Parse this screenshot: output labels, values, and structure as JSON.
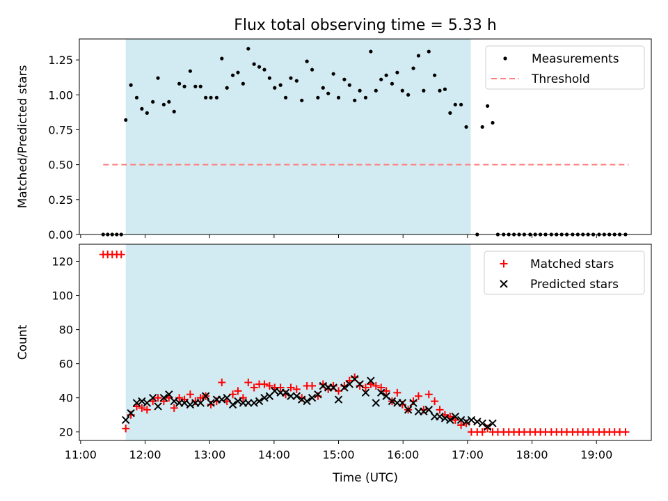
{
  "chart_data": {
    "title": "Flux total observing time = 5.33 h",
    "xlabel": "Time (UTC)",
    "x_ticks": [
      "11:00",
      "12:00",
      "13:00",
      "14:00",
      "15:00",
      "16:00",
      "17:00",
      "18:00",
      "19:00"
    ],
    "x_range_hours": [
      10.98,
      19.85
    ],
    "observing_window_hours": [
      11.7,
      17.05
    ],
    "colors": {
      "window": "#add8e6",
      "matched": "#ff0000",
      "predicted": "#000000",
      "threshold": "#ff7f7f",
      "measurement": "#000000"
    },
    "panels": [
      {
        "type": "scatter",
        "ylabel": "Matched/Predicted stars",
        "ylim": [
          0,
          1.4
        ],
        "y_ticks": [
          0.0,
          0.25,
          0.5,
          0.75,
          1.0,
          1.25
        ],
        "y_tick_labels": [
          "0.00",
          "0.25",
          "0.50",
          "0.75",
          "1.00",
          "1.25"
        ],
        "legend": {
          "position": "top-right",
          "entries": [
            "Measurements",
            "Threshold"
          ]
        },
        "threshold": {
          "name": "Threshold",
          "value": 0.5,
          "x": [
            11.35,
            19.5
          ]
        },
        "series": [
          {
            "name": "Measurements",
            "marker": "dot",
            "x": [
              11.35,
              11.42,
              11.49,
              11.56,
              11.63,
              11.7,
              11.78,
              11.87,
              11.95,
              12.03,
              12.12,
              12.2,
              12.29,
              12.37,
              12.45,
              12.53,
              12.61,
              12.7,
              12.78,
              12.86,
              12.94,
              13.02,
              13.11,
              13.19,
              13.27,
              13.36,
              13.44,
              13.52,
              13.6,
              13.69,
              13.77,
              13.85,
              13.93,
              14.01,
              14.1,
              14.18,
              14.26,
              14.35,
              14.43,
              14.51,
              14.59,
              14.68,
              14.76,
              14.84,
              14.92,
              15.0,
              15.09,
              15.17,
              15.25,
              15.33,
              15.42,
              15.5,
              15.58,
              15.66,
              15.74,
              15.83,
              15.91,
              15.99,
              16.08,
              16.16,
              16.24,
              16.32,
              16.4,
              16.49,
              16.57,
              16.65,
              16.73,
              16.81,
              16.9,
              16.98,
              17.06,
              17.15,
              17.23,
              17.31,
              17.39,
              17.47,
              17.56,
              17.64,
              17.72,
              17.8,
              17.88,
              17.97,
              18.05,
              18.13,
              18.21,
              18.3,
              18.38,
              18.46,
              18.54,
              18.63,
              18.71,
              18.79,
              18.87,
              18.95,
              19.04,
              19.12,
              19.2,
              19.28,
              19.36,
              19.45
            ],
            "y": [
              0.0,
              0.0,
              0.0,
              0.0,
              0.0,
              0.82,
              1.07,
              0.98,
              0.9,
              0.87,
              0.95,
              1.12,
              0.93,
              0.95,
              0.88,
              1.08,
              1.06,
              1.17,
              1.06,
              1.06,
              0.98,
              0.98,
              0.98,
              1.26,
              1.05,
              1.14,
              1.16,
              1.08,
              1.33,
              1.22,
              1.2,
              1.18,
              1.12,
              1.05,
              1.07,
              0.98,
              1.12,
              1.1,
              0.96,
              1.24,
              1.18,
              0.98,
              1.05,
              1.01,
              1.15,
              0.98,
              1.11,
              1.07,
              0.96,
              1.03,
              0.98,
              1.31,
              1.03,
              1.11,
              1.14,
              1.08,
              1.16,
              1.03,
              1.0,
              1.19,
              1.28,
              1.03,
              1.31,
              1.14,
              1.03,
              1.04,
              0.87,
              0.93,
              0.93,
              0.77,
              null,
              0.0,
              0.77,
              0.92,
              0.8,
              0.0,
              0.0,
              0.0,
              0.0,
              0.0,
              0.0,
              0.0,
              0.0,
              0.0,
              0.0,
              0.0,
              0.0,
              0.0,
              0.0,
              0.0,
              0.0,
              0.0,
              0.0,
              0.0,
              0.0,
              0.0,
              0.0,
              0.0,
              0.0,
              0.0
            ]
          }
        ]
      },
      {
        "type": "scatter",
        "ylabel": "Count",
        "ylim": [
          15,
          130
        ],
        "y_ticks": [
          20,
          40,
          60,
          80,
          100,
          120
        ],
        "y_tick_labels": [
          "20",
          "40",
          "60",
          "80",
          "100",
          "120"
        ],
        "legend": {
          "position": "top-right",
          "entries": [
            "Matched stars",
            "Predicted stars"
          ]
        },
        "series": [
          {
            "name": "Matched stars",
            "marker": "plus",
            "x": [
              11.35,
              11.42,
              11.49,
              11.56,
              11.63,
              11.7,
              11.78,
              11.87,
              11.95,
              12.03,
              12.12,
              12.2,
              12.29,
              12.37,
              12.45,
              12.53,
              12.61,
              12.7,
              12.78,
              12.86,
              12.94,
              13.02,
              13.11,
              13.19,
              13.27,
              13.36,
              13.44,
              13.52,
              13.6,
              13.69,
              13.77,
              13.85,
              13.93,
              14.01,
              14.1,
              14.18,
              14.26,
              14.35,
              14.43,
              14.51,
              14.59,
              14.68,
              14.76,
              14.84,
              14.92,
              15.0,
              15.09,
              15.17,
              15.25,
              15.33,
              15.42,
              15.5,
              15.58,
              15.66,
              15.74,
              15.83,
              15.91,
              15.99,
              16.08,
              16.16,
              16.24,
              16.32,
              16.4,
              16.49,
              16.57,
              16.65,
              16.73,
              16.81,
              16.9,
              16.98,
              17.06,
              17.15,
              17.23,
              17.31,
              17.39,
              17.47,
              17.56,
              17.64,
              17.72,
              17.8,
              17.88,
              17.97,
              18.05,
              18.13,
              18.21,
              18.3,
              18.38,
              18.46,
              18.54,
              18.63,
              18.71,
              18.79,
              18.87,
              18.95,
              19.04,
              19.12,
              19.2,
              19.28,
              19.36,
              19.45
            ],
            "y": [
              124,
              124,
              124,
              124,
              124,
              22,
              30,
              35,
              34,
              33,
              38,
              40,
              38,
              40,
              34,
              40,
              39,
              42,
              38,
              40,
              41,
              36,
              38,
              49,
              38,
              42,
              44,
              40,
              49,
              46,
              48,
              48,
              47,
              46,
              46,
              42,
              46,
              45,
              40,
              47,
              47,
              41,
              48,
              45,
              47,
              44,
              47,
              50,
              52,
              47,
              46,
              48,
              47,
              46,
              44,
              38,
              43,
              36,
              33,
              38,
              41,
              33,
              42,
              38,
              33,
              30,
              29,
              27,
              24,
              25,
              20,
              20,
              20,
              22,
              20,
              20,
              20,
              20,
              20,
              20,
              20,
              20,
              20,
              20,
              20,
              20,
              20,
              20,
              20,
              20,
              20,
              20,
              20,
              20,
              20,
              20,
              20,
              20,
              20,
              20
            ]
          },
          {
            "name": "Predicted stars",
            "marker": "x",
            "x": [
              11.7,
              11.78,
              11.87,
              11.95,
              12.03,
              12.12,
              12.2,
              12.29,
              12.37,
              12.45,
              12.53,
              12.61,
              12.7,
              12.78,
              12.86,
              12.94,
              13.02,
              13.11,
              13.19,
              13.27,
              13.36,
              13.44,
              13.52,
              13.6,
              13.69,
              13.77,
              13.85,
              13.93,
              14.01,
              14.1,
              14.18,
              14.26,
              14.35,
              14.43,
              14.51,
              14.59,
              14.68,
              14.76,
              14.84,
              14.92,
              15.0,
              15.09,
              15.17,
              15.25,
              15.33,
              15.42,
              15.5,
              15.58,
              15.66,
              15.74,
              15.83,
              15.91,
              15.99,
              16.08,
              16.16,
              16.24,
              16.32,
              16.4,
              16.49,
              16.57,
              16.65,
              16.73,
              16.81,
              16.9,
              16.98,
              17.06,
              17.15,
              17.23,
              17.31,
              17.39
            ],
            "y": [
              27,
              31,
              37,
              38,
              37,
              40,
              35,
              40,
              42,
              38,
              37,
              37,
              36,
              37,
              37,
              41,
              37,
              39,
              39,
              40,
              36,
              38,
              37,
              37,
              37,
              38,
              40,
              41,
              44,
              43,
              43,
              41,
              41,
              39,
              38,
              40,
              42,
              47,
              46,
              46,
              39,
              46,
              48,
              51,
              48,
              43,
              50,
              37,
              43,
              41,
              38,
              37,
              37,
              33,
              37,
              32,
              32,
              33,
              29,
              29,
              28,
              27,
              29,
              27,
              26,
              27,
              26,
              25,
              23,
              25
            ]
          }
        ]
      }
    ]
  }
}
